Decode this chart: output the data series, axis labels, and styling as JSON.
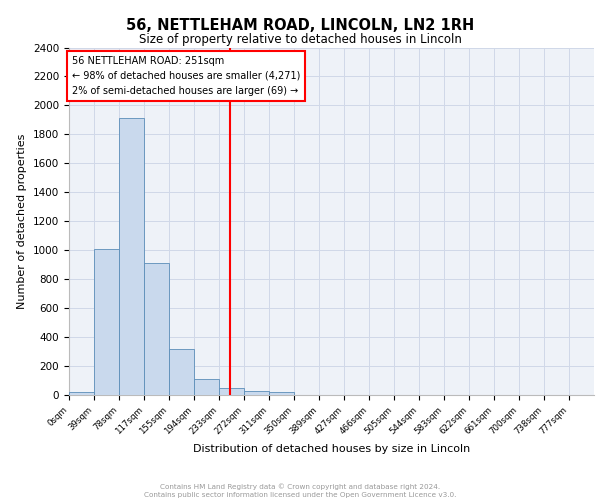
{
  "title": "56, NETTLEHAM ROAD, LINCOLN, LN2 1RH",
  "subtitle": "Size of property relative to detached houses in Lincoln",
  "xlabel": "Distribution of detached houses by size in Lincoln",
  "ylabel": "Number of detached properties",
  "bin_labels": [
    "0sqm",
    "39sqm",
    "78sqm",
    "117sqm",
    "155sqm",
    "194sqm",
    "233sqm",
    "272sqm",
    "311sqm",
    "350sqm",
    "389sqm",
    "427sqm",
    "466sqm",
    "505sqm",
    "544sqm",
    "583sqm",
    "622sqm",
    "661sqm",
    "700sqm",
    "738sqm",
    "777sqm"
  ],
  "bin_edges": [
    0,
    39,
    78,
    117,
    155,
    194,
    233,
    272,
    311,
    350,
    389,
    427,
    466,
    505,
    544,
    583,
    622,
    661,
    700,
    738,
    777,
    816
  ],
  "bar_values": [
    20,
    1010,
    1910,
    910,
    320,
    110,
    50,
    30,
    20,
    0,
    0,
    0,
    0,
    0,
    0,
    0,
    0,
    0,
    0,
    0,
    0
  ],
  "bar_color": "#c9d9ed",
  "bar_edge_color": "#5b8db8",
  "grid_color": "#d0d8e8",
  "bg_color": "#eef2f8",
  "vline_x": 251,
  "vline_color": "red",
  "annotation_text": "56 NETTLEHAM ROAD: 251sqm\n← 98% of detached houses are smaller (4,271)\n2% of semi-detached houses are larger (69) →",
  "annotation_box_color": "white",
  "annotation_border_color": "red",
  "ylim": [
    0,
    2400
  ],
  "yticks": [
    0,
    200,
    400,
    600,
    800,
    1000,
    1200,
    1400,
    1600,
    1800,
    2000,
    2200,
    2400
  ],
  "footer_line1": "Contains HM Land Registry data © Crown copyright and database right 2024.",
  "footer_line2": "Contains public sector information licensed under the Open Government Licence v3.0."
}
